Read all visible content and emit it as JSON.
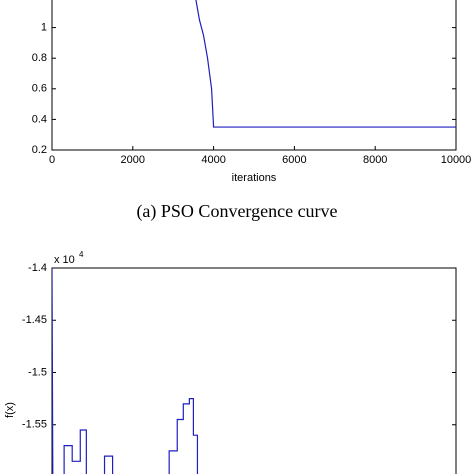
{
  "chart_data": [
    {
      "type": "line",
      "xlabel": "iterations",
      "caption": "(a) PSO Convergence curve",
      "xlim": [
        0,
        10000
      ],
      "xticks": [
        0,
        2000,
        4000,
        6000,
        8000,
        10000
      ],
      "ylim": [
        0.2,
        1.2
      ],
      "yticks": [
        0.2,
        0.4,
        0.6,
        0.8,
        1
      ],
      "x": [
        3550,
        3650,
        3750,
        3850,
        3950,
        4000,
        10000
      ],
      "series": [
        {
          "color": "#1f1fbf",
          "values": [
            1.2,
            1.05,
            0.95,
            0.8,
            0.6,
            0.35,
            0.35
          ]
        }
      ]
    },
    {
      "type": "line",
      "ylabel": "f(x)",
      "y_scale_label": "x 10",
      "y_scale_exponent": "4",
      "xlim": [
        0,
        10000
      ],
      "ylim": [
        -1.6,
        -1.4
      ],
      "yticks": [
        -1.4,
        -1.45,
        -1.5,
        -1.55
      ],
      "x": [
        0,
        20,
        300,
        300,
        500,
        500,
        700,
        700,
        850,
        850,
        1300,
        1300,
        1500,
        1500,
        2900,
        2900,
        3100,
        3100,
        3250,
        3250,
        3400,
        3400,
        3500,
        3500,
        3600,
        3600
      ],
      "series": [
        {
          "color": "#1f1fbf",
          "values": [
            -1.4,
            -1.6,
            -1.6,
            -1.57,
            -1.57,
            -1.585,
            -1.585,
            -1.555,
            -1.555,
            -1.6,
            -1.6,
            -1.58,
            -1.58,
            -1.6,
            -1.6,
            -1.575,
            -1.575,
            -1.545,
            -1.545,
            -1.53,
            -1.53,
            -1.525,
            -1.525,
            -1.56,
            -1.56,
            -1.6
          ]
        }
      ]
    }
  ]
}
